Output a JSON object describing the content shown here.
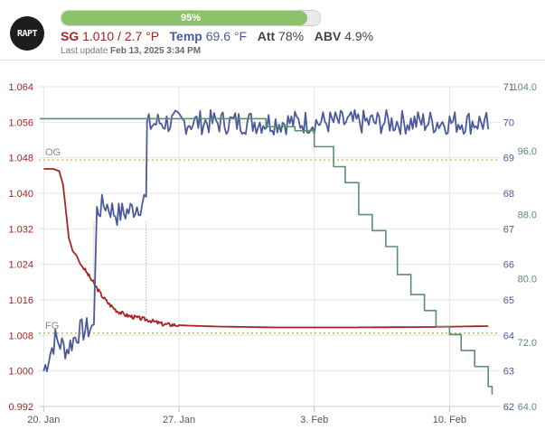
{
  "logo": {
    "text": "RAPT"
  },
  "progress": {
    "label": "95%",
    "fraction": 0.95,
    "color": "#8dc26a"
  },
  "readings": {
    "sg_label": "SG",
    "sg_value": "1.010 / 2.7 °P",
    "temp_label": "Temp",
    "temp_value": "69.6 °F",
    "att_label": "Att",
    "att_value": "78%",
    "abv_label": "ABV",
    "abv_value": "4.9%"
  },
  "last_update": {
    "label": "Last update",
    "value": "Feb 13, 2025 3:34 PM"
  },
  "colors": {
    "sg": "#a82424",
    "temp": "#4b5a9c",
    "battery": "#5a8f72",
    "og_line": "#c9b640",
    "fg_line": "#a9ab5a",
    "grid": "#e6e6e6"
  },
  "chart_data": {
    "type": "line",
    "x_ticks": [
      "20. Jan",
      "27. Jan",
      "3. Feb",
      "10. Feb"
    ],
    "x_tick_days": [
      0,
      7,
      14,
      21
    ],
    "x_range_days": [
      -0.25,
      23.6
    ],
    "sg_axis": {
      "ticks": [
        "1.064",
        "1.056",
        "1.048",
        "1.040",
        "1.032",
        "1.024",
        "1.016",
        "1.008",
        "1.000",
        "0.992"
      ],
      "range": [
        0.992,
        1.064
      ]
    },
    "temp_axis": {
      "ticks": [
        "71",
        "70",
        "69",
        "68",
        "67",
        "66",
        "65",
        "64",
        "63",
        "62"
      ],
      "range": [
        62,
        71
      ]
    },
    "battery_axis": {
      "ticks": [
        "104.0",
        "96.0",
        "88.0",
        "80.0",
        "72.0",
        "64.0"
      ],
      "range": [
        64.0,
        104.0
      ]
    },
    "annotations": [
      {
        "label": "OG",
        "sg": 1.0475
      },
      {
        "label": "FG",
        "sg": 1.0085
      }
    ],
    "series": [
      {
        "axis": "sg",
        "points": [
          [
            0,
            1.0455
          ],
          [
            0.5,
            1.0455
          ],
          [
            0.8,
            1.045
          ],
          [
            1.0,
            1.042
          ],
          [
            1.15,
            1.036
          ],
          [
            1.3,
            1.03
          ],
          [
            1.5,
            1.027
          ],
          [
            1.7,
            1.026
          ],
          [
            1.9,
            1.024
          ],
          [
            2.1,
            1.023
          ],
          [
            2.4,
            1.021
          ],
          [
            2.7,
            1.019
          ],
          [
            3.0,
            1.017
          ],
          [
            3.4,
            1.015
          ],
          [
            3.8,
            1.0135
          ],
          [
            4.3,
            1.0125
          ],
          [
            4.8,
            1.012
          ],
          [
            5.4,
            1.0115
          ],
          [
            6.2,
            1.0105
          ],
          [
            7.5,
            1.0102
          ],
          [
            9.0,
            1.01
          ],
          [
            12,
            1.0098
          ],
          [
            16,
            1.0098
          ],
          [
            20,
            1.0099
          ],
          [
            23.0,
            1.0101
          ]
        ]
      },
      {
        "axis": "temp",
        "points": [
          [
            0,
            63.0
          ],
          [
            0.6,
            63.9
          ],
          [
            1.2,
            63.6
          ],
          [
            1.8,
            64.1
          ],
          [
            2.4,
            64.2
          ],
          [
            2.6,
            64.3
          ],
          [
            2.75,
            67.5
          ],
          [
            3.2,
            67.7
          ],
          [
            3.8,
            67.4
          ],
          [
            4.4,
            67.5
          ],
          [
            5.0,
            67.7
          ],
          [
            5.3,
            67.9
          ],
          [
            5.35,
            69.9
          ],
          [
            6.0,
            70.0
          ],
          [
            9,
            70.0
          ],
          [
            12,
            70.0
          ],
          [
            15,
            70.0
          ],
          [
            18,
            70.0
          ],
          [
            21,
            70.0
          ],
          [
            23.0,
            70.0
          ]
        ]
      },
      {
        "axis": "battery",
        "points": [
          [
            -0.2,
            100.0
          ],
          [
            10.0,
            100.0
          ],
          [
            11.5,
            99.0
          ],
          [
            13.0,
            98.5
          ],
          [
            14.0,
            96.5
          ],
          [
            15.0,
            94.0
          ],
          [
            15.6,
            92.0
          ],
          [
            16.3,
            88.0
          ],
          [
            17.0,
            86.0
          ],
          [
            17.7,
            84.0
          ],
          [
            18.3,
            80.5
          ],
          [
            19.0,
            78.0
          ],
          [
            19.7,
            76.0
          ],
          [
            20.3,
            74.0
          ],
          [
            21.0,
            73.0
          ],
          [
            21.6,
            71.0
          ],
          [
            22.3,
            69.0
          ],
          [
            23.0,
            66.5
          ],
          [
            23.2,
            65.5
          ]
        ]
      }
    ]
  }
}
